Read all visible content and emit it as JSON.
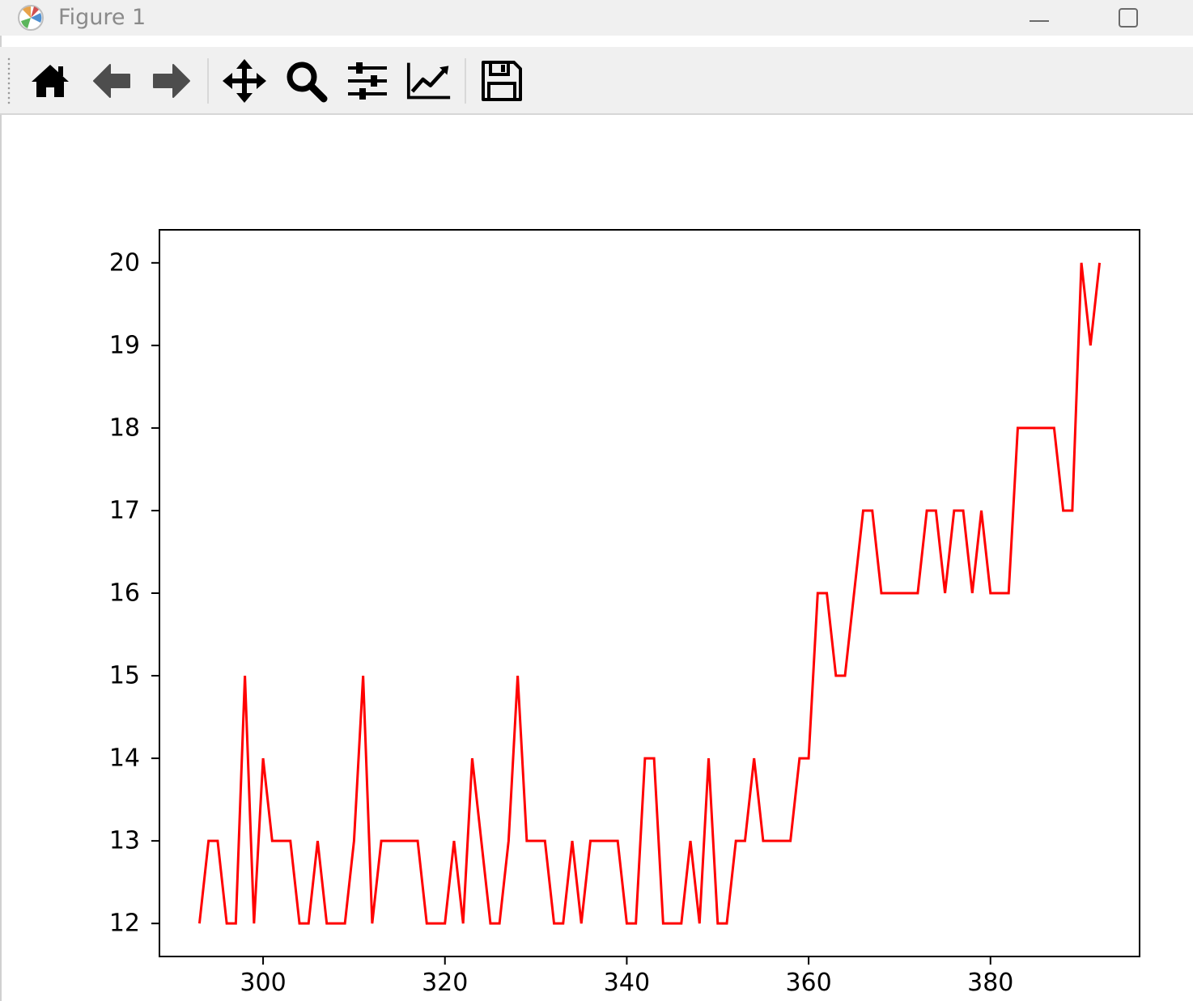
{
  "window": {
    "title": "Figure 1"
  },
  "toolbar": {
    "buttons": [
      {
        "name": "home-button",
        "icon": "home-icon"
      },
      {
        "name": "back-button",
        "icon": "arrow-left-icon"
      },
      {
        "name": "forward-button",
        "icon": "arrow-right-icon"
      },
      {
        "name": "pan-button",
        "icon": "move-icon"
      },
      {
        "name": "zoom-button",
        "icon": "magnifier-icon"
      },
      {
        "name": "configure-subplots-button",
        "icon": "sliders-icon"
      },
      {
        "name": "edit-axis-button",
        "icon": "line-chart-icon"
      },
      {
        "name": "save-button",
        "icon": "floppy-disk-icon"
      }
    ]
  },
  "chart_data": {
    "type": "line",
    "title": "",
    "xlabel": "",
    "ylabel": "",
    "xlim": [
      288.6,
      396.4
    ],
    "ylim": [
      11.6,
      20.4
    ],
    "xticks": [
      300,
      320,
      340,
      360,
      380
    ],
    "yticks": [
      12,
      13,
      14,
      15,
      16,
      17,
      18,
      19,
      20
    ],
    "grid": false,
    "colors": {
      "line": "#ff0000",
      "axes": "#000000",
      "background": "#ffffff"
    },
    "series": [
      {
        "x": [
          293,
          294,
          295,
          296,
          297,
          298,
          299,
          300,
          301,
          302,
          303,
          304,
          305,
          306,
          307,
          308,
          309,
          310,
          311,
          312,
          313,
          314,
          315,
          316,
          317,
          318,
          319,
          320,
          321,
          322,
          323,
          324,
          325,
          326,
          327,
          328,
          329,
          330,
          331,
          332,
          333,
          334,
          335,
          336,
          337,
          338,
          339,
          340,
          341,
          342,
          343,
          344,
          345,
          346,
          347,
          348,
          349,
          350,
          351,
          352,
          353,
          354,
          355,
          356,
          357,
          358,
          359,
          360,
          361,
          362,
          363,
          364,
          365,
          366,
          367,
          368,
          369,
          370,
          371,
          372,
          373,
          374,
          375,
          376,
          377,
          378,
          379,
          380,
          381,
          382,
          383,
          384,
          385,
          386,
          387,
          388,
          389,
          390,
          391,
          392
        ],
        "y": [
          12,
          13,
          13,
          12,
          12,
          15,
          12,
          14,
          13,
          13,
          13,
          12,
          12,
          13,
          12,
          12,
          12,
          13,
          15,
          12,
          13,
          13,
          13,
          13,
          13,
          12,
          12,
          12,
          13,
          12,
          14,
          13,
          12,
          12,
          13,
          15,
          13,
          13,
          13,
          12,
          12,
          13,
          12,
          13,
          13,
          13,
          13,
          12,
          12,
          14,
          14,
          12,
          12,
          12,
          13,
          12,
          14,
          12,
          12,
          13,
          13,
          14,
          13,
          13,
          13,
          13,
          14,
          14,
          16,
          16,
          15,
          15,
          16,
          17,
          17,
          16,
          16,
          16,
          16,
          16,
          17,
          17,
          16,
          17,
          17,
          16,
          17,
          16,
          16,
          16,
          18,
          18,
          18,
          18,
          18,
          17,
          17,
          20,
          19,
          20
        ]
      }
    ]
  }
}
